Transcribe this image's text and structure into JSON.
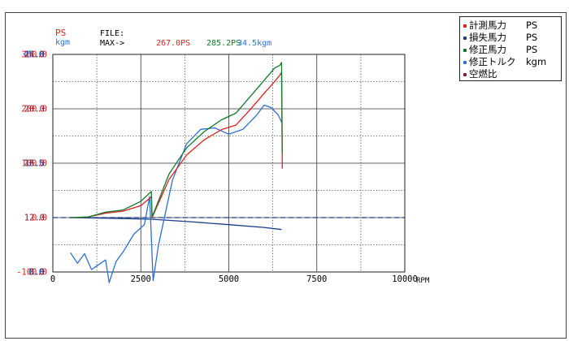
{
  "header": {
    "ps_label": "PS",
    "kgm_label": "kgm",
    "file_label": "FILE:",
    "max_label": "MAX->",
    "max_values": [
      {
        "text": "267.0PS",
        "color": "#e0201c"
      },
      {
        "text": "285.2PS",
        "color": "#107a2a"
      },
      {
        "text": "34.5kgm",
        "color": "#2a6fd6"
      }
    ]
  },
  "legend": [
    {
      "name": "計測馬力",
      "unit": "PS",
      "color": "#e0201c"
    },
    {
      "name": "損失馬力",
      "unit": "PS",
      "color": "#1a3b8c"
    },
    {
      "name": "修正馬力",
      "unit": "PS",
      "color": "#107a2a"
    },
    {
      "name": "修正トルク",
      "unit": "kgm",
      "color": "#2a6fd6"
    },
    {
      "name": "空燃比",
      "unit": "",
      "color": "#8a1a3a"
    }
  ],
  "chart_data": {
    "type": "line",
    "xlabel": "RPM",
    "x_ticks": [
      "0",
      "2500",
      "5000",
      "7500",
      "10000"
    ],
    "xlim": [
      0,
      10000
    ],
    "grid": true,
    "legend_placement": "right",
    "axes": {
      "ps": {
        "ticks": [
          "300.0",
          "200.0",
          "100.0",
          "0.0",
          "-100.0"
        ],
        "range": [
          -100,
          300
        ],
        "color": "#e0201c"
      },
      "kgm": {
        "ticks": [
          "45.0",
          "22.5",
          "0.0"
        ],
        "range": [
          0,
          45
        ],
        "color": "#2a6fd6"
      },
      "afr": {
        "ticks": [
          "24.0",
          "20.0",
          "16.0",
          "12.0",
          "8.0"
        ],
        "range": [
          8,
          24
        ],
        "color": "#8a1a3a"
      }
    },
    "series": [
      {
        "name": "計測馬力",
        "unit": "PS",
        "color": "#e0201c",
        "axis": "ps",
        "x": [
          500,
          1000,
          1500,
          2000,
          2500,
          2800,
          2820,
          2900,
          3300,
          3800,
          4300,
          4800,
          5200,
          5600,
          6000,
          6300,
          6450,
          6500,
          6520
        ],
        "y": [
          0,
          1,
          8,
          12,
          22,
          38,
          0,
          12,
          70,
          115,
          143,
          162,
          170,
          198,
          228,
          250,
          262,
          267,
          90
        ]
      },
      {
        "name": "修正馬力",
        "unit": "PS",
        "color": "#107a2a",
        "axis": "ps",
        "x": [
          500,
          1000,
          1500,
          2000,
          2500,
          2800,
          2820,
          2900,
          3300,
          3800,
          4300,
          4800,
          5200,
          5600,
          6000,
          6300,
          6450,
          6500,
          6520
        ],
        "y": [
          0,
          1,
          10,
          14,
          30,
          48,
          2,
          14,
          80,
          128,
          158,
          180,
          192,
          222,
          252,
          275,
          280,
          285.2,
          118
        ]
      },
      {
        "name": "損失馬力",
        "unit": "PS",
        "color": "#1a3b8c",
        "axis": "ps",
        "x": [
          500,
          1500,
          2800,
          4000,
          5000,
          6000,
          6500
        ],
        "y": [
          0,
          -1,
          -3,
          -8,
          -13,
          -18,
          -22
        ]
      },
      {
        "name": "修正トルク",
        "unit": "kgm",
        "color": "#2a6fd6",
        "axis": "kgm",
        "x": [
          500,
          700,
          900,
          1100,
          1300,
          1500,
          1600,
          1800,
          2000,
          2300,
          2600,
          2750,
          2850,
          3000,
          3400,
          3800,
          4200,
          4600,
          5000,
          5400,
          5800,
          6000,
          6200,
          6400,
          6500
        ],
        "y": [
          4.0,
          1.8,
          3.8,
          0.5,
          1.5,
          2.5,
          -2.2,
          2.2,
          4.2,
          7.8,
          9.8,
          15.6,
          -1.8,
          5.5,
          19.0,
          26.5,
          29.5,
          29.8,
          28.5,
          29.5,
          32.5,
          34.5,
          34.0,
          32.5,
          31.0
        ]
      },
      {
        "name": "空燃比",
        "unit": "",
        "color": "#8a1a3a",
        "axis": "afr",
        "x": [],
        "y": []
      }
    ],
    "reference_lines": [
      {
        "axis": "afr",
        "value": 12.0,
        "style": "dashed",
        "color": "#1a3b8c"
      }
    ]
  }
}
